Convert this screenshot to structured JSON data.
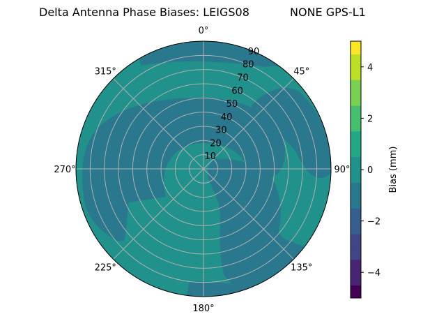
{
  "title_left": "Delta Antenna Phase Biases: LEIGS08",
  "title_right": "NONE GPS-L1",
  "chart_data": {
    "type": "polar-contour",
    "theta_labels": [
      "0°",
      "45°",
      "90°",
      "135°",
      "180°",
      "225°",
      "270°",
      "315°"
    ],
    "radial_ticks": [
      10,
      20,
      30,
      40,
      50,
      60,
      70,
      80,
      90
    ],
    "rlim": [
      0,
      90
    ],
    "colorbar": {
      "label": "Bias (mm)",
      "range": [
        -5,
        5
      ],
      "ticks": [
        -4,
        -2,
        0,
        2,
        4
      ],
      "levels": [
        -5,
        -4.5,
        -4,
        -3.5,
        -3,
        -2.5,
        -2,
        -1.5,
        -1,
        -0.5,
        0,
        0.5,
        1,
        1.5,
        2,
        2.5,
        3,
        3.5,
        4,
        4.5,
        5
      ],
      "colors": [
        "#440154",
        "#482475",
        "#414487",
        "#355f8d",
        "#2a788e",
        "#21918c",
        "#22a884",
        "#44bf70",
        "#7ad151",
        "#bddf26",
        "#fde725"
      ]
    },
    "grid": true,
    "regions": [
      {
        "level": "0 to 1",
        "color": "#21918c",
        "description": "background"
      },
      {
        "level": "-1 to 0",
        "color": "#2a788e",
        "description": "outer north band"
      },
      {
        "level": "-1 to 0",
        "color": "#2a788e",
        "description": "central arc band"
      },
      {
        "level": "-1 to 0",
        "color": "#2a788e",
        "description": "north-east lobe"
      },
      {
        "level": "-1 to 0",
        "color": "#2a788e",
        "description": "south-east lobe"
      },
      {
        "level": "-1 to 0",
        "color": "#2a788e",
        "description": "south lobe"
      }
    ]
  }
}
